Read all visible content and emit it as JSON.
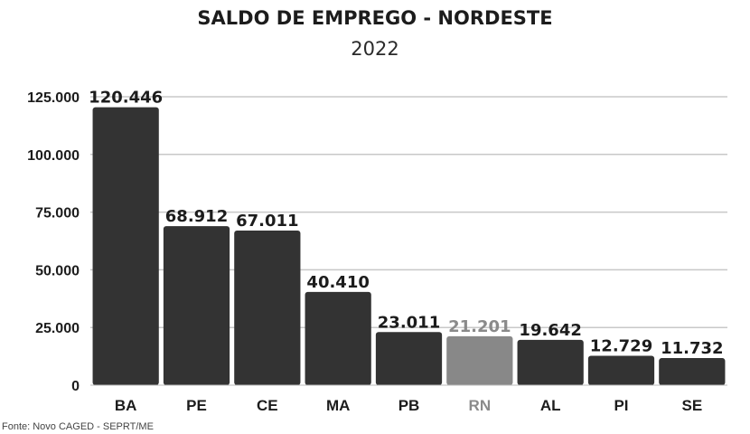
{
  "chart_data": {
    "type": "bar",
    "title": "SALDO DE EMPREGO -  NORDESTE",
    "subtitle": "2022",
    "xlabel": "",
    "ylabel": "",
    "categories": [
      "BA",
      "PE",
      "CE",
      "MA",
      "PB",
      "RN",
      "AL",
      "PI",
      "SE"
    ],
    "values": [
      120446,
      68912,
      67011,
      40410,
      23011,
      21201,
      19642,
      12729,
      11732
    ],
    "value_labels": [
      "120.446",
      "68.912",
      "67.011",
      "40.410",
      "23.011",
      "21.201",
      "19.642",
      "12.729",
      "11.732"
    ],
    "highlight_category": "RN",
    "ylim": [
      0,
      125000
    ],
    "yticks": [
      0,
      25000,
      50000,
      75000,
      100000,
      125000
    ],
    "ytick_labels": [
      "0",
      "25.000",
      "50.000",
      "75.000",
      "100.000",
      "125.000"
    ],
    "grid": true,
    "legend": "none",
    "colors": {
      "bar": "#333333",
      "highlight_bar": "#888888",
      "highlight_text": "#8a8a8a",
      "grid": "#c8c8c8"
    }
  },
  "source": "Fonte: Novo CAGED - SEPRT/ME"
}
